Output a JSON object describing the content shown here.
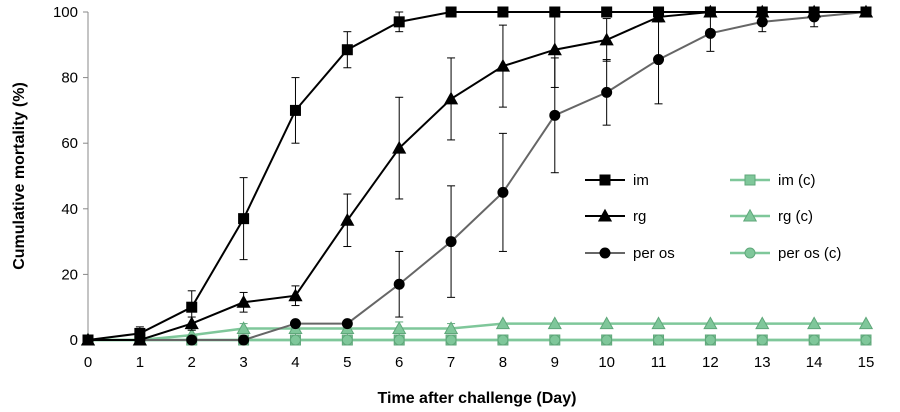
{
  "chart_data": {
    "type": "line",
    "xlabel": "Time after challenge (Day)",
    "ylabel": "Cumulative mortality (%)",
    "xlim": [
      0,
      15
    ],
    "ylim": [
      0,
      100
    ],
    "x_ticks": [
      "0",
      "1",
      "2",
      "3",
      "4",
      "5",
      "6",
      "7",
      "8",
      "9",
      "10",
      "11",
      "12",
      "13",
      "14",
      "15"
    ],
    "y_ticks": [
      "0",
      "20",
      "40",
      "60",
      "80",
      "100"
    ],
    "grid": false,
    "legend_position": "center-right",
    "x": [
      0,
      1,
      2,
      3,
      4,
      5,
      6,
      7,
      8,
      9,
      10,
      11,
      12,
      13,
      14,
      15
    ],
    "series": [
      {
        "name": "im",
        "marker": "square",
        "color": "#000000",
        "values": [
          0,
          2,
          10,
          37,
          70,
          88.5,
          97,
          100,
          100,
          100,
          100,
          100,
          100,
          100,
          100,
          100
        ],
        "errors": [
          0,
          2,
          5,
          12.5,
          10,
          5.5,
          3,
          0,
          0,
          0,
          0,
          0,
          0,
          0,
          0,
          0
        ]
      },
      {
        "name": "im (c)",
        "marker": "square",
        "color": "#7fc79a",
        "values": [
          0,
          0,
          0,
          0,
          0,
          0,
          0,
          0,
          0,
          0,
          0,
          0,
          0,
          0,
          0,
          0
        ],
        "errors": [
          0,
          0,
          0,
          0,
          0,
          0,
          0,
          0,
          0,
          0,
          0,
          0,
          0,
          0,
          0,
          0
        ]
      },
      {
        "name": "rg",
        "marker": "triangle",
        "color": "#000000",
        "values": [
          0,
          0,
          5,
          11.5,
          13.5,
          36.5,
          58.5,
          73.5,
          83.5,
          88.5,
          91.5,
          98.5,
          100,
          100,
          100,
          100
        ],
        "errors": [
          0,
          0,
          2,
          3,
          3,
          8,
          15.5,
          12.5,
          12.5,
          11.5,
          6.5,
          1.5,
          0,
          0,
          0,
          0
        ]
      },
      {
        "name": "rg (c)",
        "marker": "triangle",
        "color": "#7fc79a",
        "values": [
          0,
          0,
          1.5,
          3.5,
          3.5,
          3.5,
          3.5,
          3.5,
          5,
          5,
          5,
          5,
          5,
          5,
          5,
          5
        ],
        "errors": [
          0,
          0,
          1.5,
          1.5,
          2,
          2,
          2,
          1.5,
          0,
          0,
          0,
          0,
          0,
          0,
          0,
          0
        ]
      },
      {
        "name": "per os",
        "marker": "circle",
        "color": "#000000",
        "line_color": "#666666",
        "values": [
          0,
          0,
          0,
          0,
          5,
          5,
          17,
          30,
          45,
          68.5,
          75.5,
          85.5,
          93.5,
          97,
          98.5,
          100
        ],
        "errors": [
          0,
          0,
          0,
          0,
          0,
          0,
          10,
          17,
          18,
          17.5,
          10,
          13.5,
          5.5,
          3,
          3,
          0
        ]
      },
      {
        "name": "per os (c)",
        "marker": "circle",
        "color": "#7fc79a",
        "values": [
          0,
          0,
          0,
          0,
          0,
          0,
          0,
          0,
          0,
          0,
          0,
          0,
          0,
          0,
          0,
          0
        ],
        "errors": [
          0,
          0,
          0,
          0,
          0,
          0,
          0,
          0,
          0,
          0,
          0,
          0,
          0,
          0,
          0,
          0
        ]
      }
    ],
    "legend_order": [
      "im",
      "im (c)",
      "rg",
      "rg (c)",
      "per os",
      "per os (c)"
    ]
  }
}
